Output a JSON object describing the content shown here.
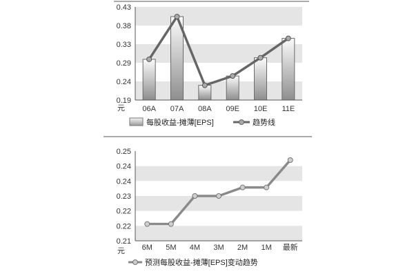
{
  "chart_data": [
    {
      "type": "bar",
      "title": "",
      "xlabel": "",
      "ylabel": "元",
      "ylim": [
        0.19,
        0.43
      ],
      "yticks": [
        "0.43",
        "0.38",
        "0.33",
        "0.29",
        "0.24",
        "0.19"
      ],
      "categories": [
        "06A",
        "07A",
        "08A",
        "09E",
        "10E",
        "11E"
      ],
      "series": [
        {
          "name": "每股收益-摊薄[EPS]",
          "type": "bar",
          "values": [
            0.295,
            0.405,
            0.228,
            0.252,
            0.299,
            0.349
          ]
        },
        {
          "name": "趋势线",
          "type": "line",
          "values": [
            0.295,
            0.405,
            0.228,
            0.252,
            0.299,
            0.349
          ]
        }
      ],
      "grid": true,
      "legend": "bottom"
    },
    {
      "type": "line",
      "title": "",
      "xlabel": "",
      "ylabel": "元",
      "ylim": [
        0.21,
        0.25
      ],
      "yticks": [
        "0.25",
        "0.24",
        "0.24",
        "0.23",
        "0.22",
        "0.22",
        "0.21"
      ],
      "categories": [
        "6M",
        "5M",
        "4M",
        "3M",
        "2M",
        "1M",
        "最新"
      ],
      "series": [
        {
          "name": "预测每股收益-摊薄[EPS]变动趋势",
          "values": [
            0.2175,
            0.2175,
            0.23,
            0.23,
            0.2338,
            0.2338,
            0.246
          ]
        }
      ],
      "grid": true,
      "legend": "bottom"
    }
  ],
  "colors": {
    "grid_band": "#e6e6e6",
    "axis": "#555555",
    "bar_fill_light": "#f4f4f4",
    "bar_fill_dark": "#9a9a9a",
    "trend_line": "#666666",
    "forecast_line": "#8a8a8a",
    "marker": "#aaaaaa"
  }
}
